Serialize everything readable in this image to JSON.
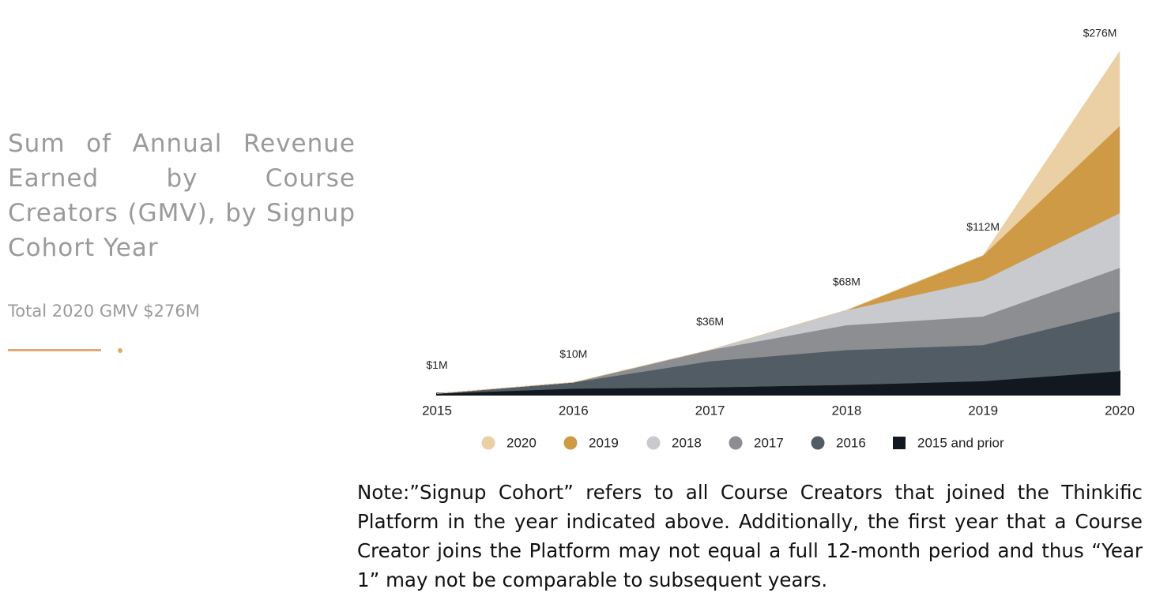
{
  "title": "Sum of Annual Revenue Earned by Course Creators (GMV), by Signup Cohort Year",
  "subtitle": "Total 2020 GMV $276M",
  "note": "Note:”Signup Cohort” refers to all Course Creators that joined the Thinkific Platform in the year indicated above. Additionally, the first year that a Course Creator joins the Platform may not equal a full 12-month period and thus “Year 1” may not be comparable to subsequent years.",
  "chart_data": {
    "type": "area",
    "stacked": true,
    "x": [
      2015,
      2016,
      2017,
      2018,
      2019,
      2020
    ],
    "xlim": [
      2015,
      2020
    ],
    "series": [
      {
        "name": "2015 and prior",
        "color": "#121820",
        "values": [
          1,
          5,
          6,
          8,
          11,
          19
        ]
      },
      {
        "name": "2016",
        "color": "#525c64",
        "values": [
          0,
          5,
          21,
          28,
          29,
          48
        ]
      },
      {
        "name": "2017",
        "color": "#8c8e91",
        "values": [
          0,
          0,
          9,
          20,
          23,
          35
        ]
      },
      {
        "name": "2018",
        "color": "#c8cacd",
        "values": [
          0,
          0,
          0,
          12,
          29,
          44
        ]
      },
      {
        "name": "2019",
        "color": "#cf9a45",
        "values": [
          0,
          0,
          0,
          0,
          20,
          70
        ]
      },
      {
        "name": "2020",
        "color": "#ebcfa5",
        "values": [
          0,
          0,
          0,
          0,
          0,
          60
        ]
      }
    ],
    "totals": {
      "values": [
        1,
        10,
        36,
        68,
        112,
        276
      ],
      "value_labels": [
        "$1M",
        "$10M",
        "$36M",
        "$68M",
        "$112M",
        "$276M"
      ]
    }
  }
}
